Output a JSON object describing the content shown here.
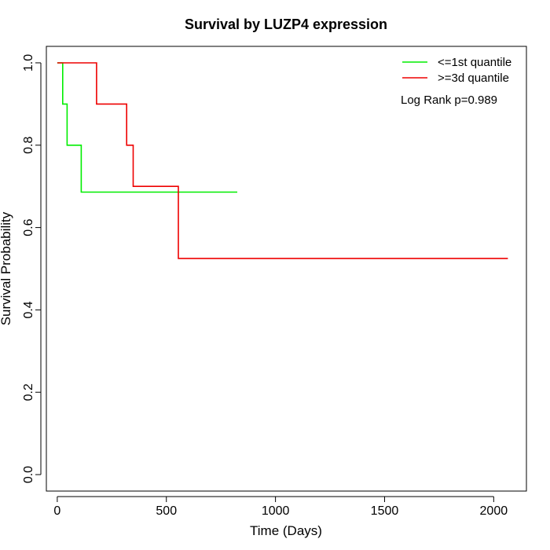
{
  "chart_data": {
    "type": "line",
    "step": true,
    "title": "Survival by LUZP4 expression",
    "xlabel": "Time (Days)",
    "ylabel": "Survival Probability",
    "xlim": [
      -50,
      2150
    ],
    "ylim": [
      -0.04,
      1.04
    ],
    "x_ticks": [
      0,
      500,
      1000,
      1500,
      2000
    ],
    "y_ticks": [
      0.0,
      0.2,
      0.4,
      0.6,
      0.8,
      1.0
    ],
    "x_tick_labels": [
      "0",
      "500",
      "1000",
      "1500",
      "2000"
    ],
    "y_tick_labels": [
      "0.0",
      "0.2",
      "0.4",
      "0.6",
      "0.8",
      "1.0"
    ],
    "grid": false,
    "legend_position": "top-right",
    "series": [
      {
        "name": "<=1st quantile",
        "color": "#00ee00",
        "points": [
          [
            0,
            1.0
          ],
          [
            25,
            1.0
          ],
          [
            25,
            0.9
          ],
          [
            45,
            0.9
          ],
          [
            45,
            0.8
          ],
          [
            110,
            0.8
          ],
          [
            110,
            0.686
          ],
          [
            825,
            0.686
          ]
        ]
      },
      {
        "name": ">=3d quantile",
        "color": "#ee0000",
        "points": [
          [
            0,
            1.0
          ],
          [
            180,
            1.0
          ],
          [
            180,
            0.9
          ],
          [
            318,
            0.9
          ],
          [
            318,
            0.8
          ],
          [
            348,
            0.8
          ],
          [
            348,
            0.7
          ],
          [
            555,
            0.7
          ],
          [
            555,
            0.525
          ],
          [
            2065,
            0.525
          ]
        ]
      }
    ],
    "annotations": [
      "Log Rank p=0.989"
    ]
  }
}
